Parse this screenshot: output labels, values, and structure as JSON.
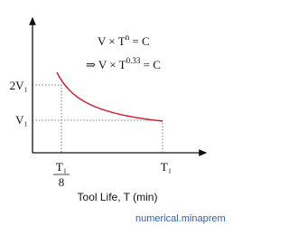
{
  "equations": [
    {
      "base": "V × T",
      "exponent": "n",
      "rest": " =  C"
    },
    {
      "base": "⇒ V × T",
      "exponent": "0.33",
      "rest": " = C"
    }
  ],
  "y_labels": {
    "upper": "2V₁",
    "lower": "V₁"
  },
  "x_labels": {
    "fraction_numerator": "T₁",
    "fraction_denominator": "8",
    "full": "T₁"
  },
  "x_axis_title": "Tool Life, T (min)",
  "watermark": "numerical.minaprem"
}
